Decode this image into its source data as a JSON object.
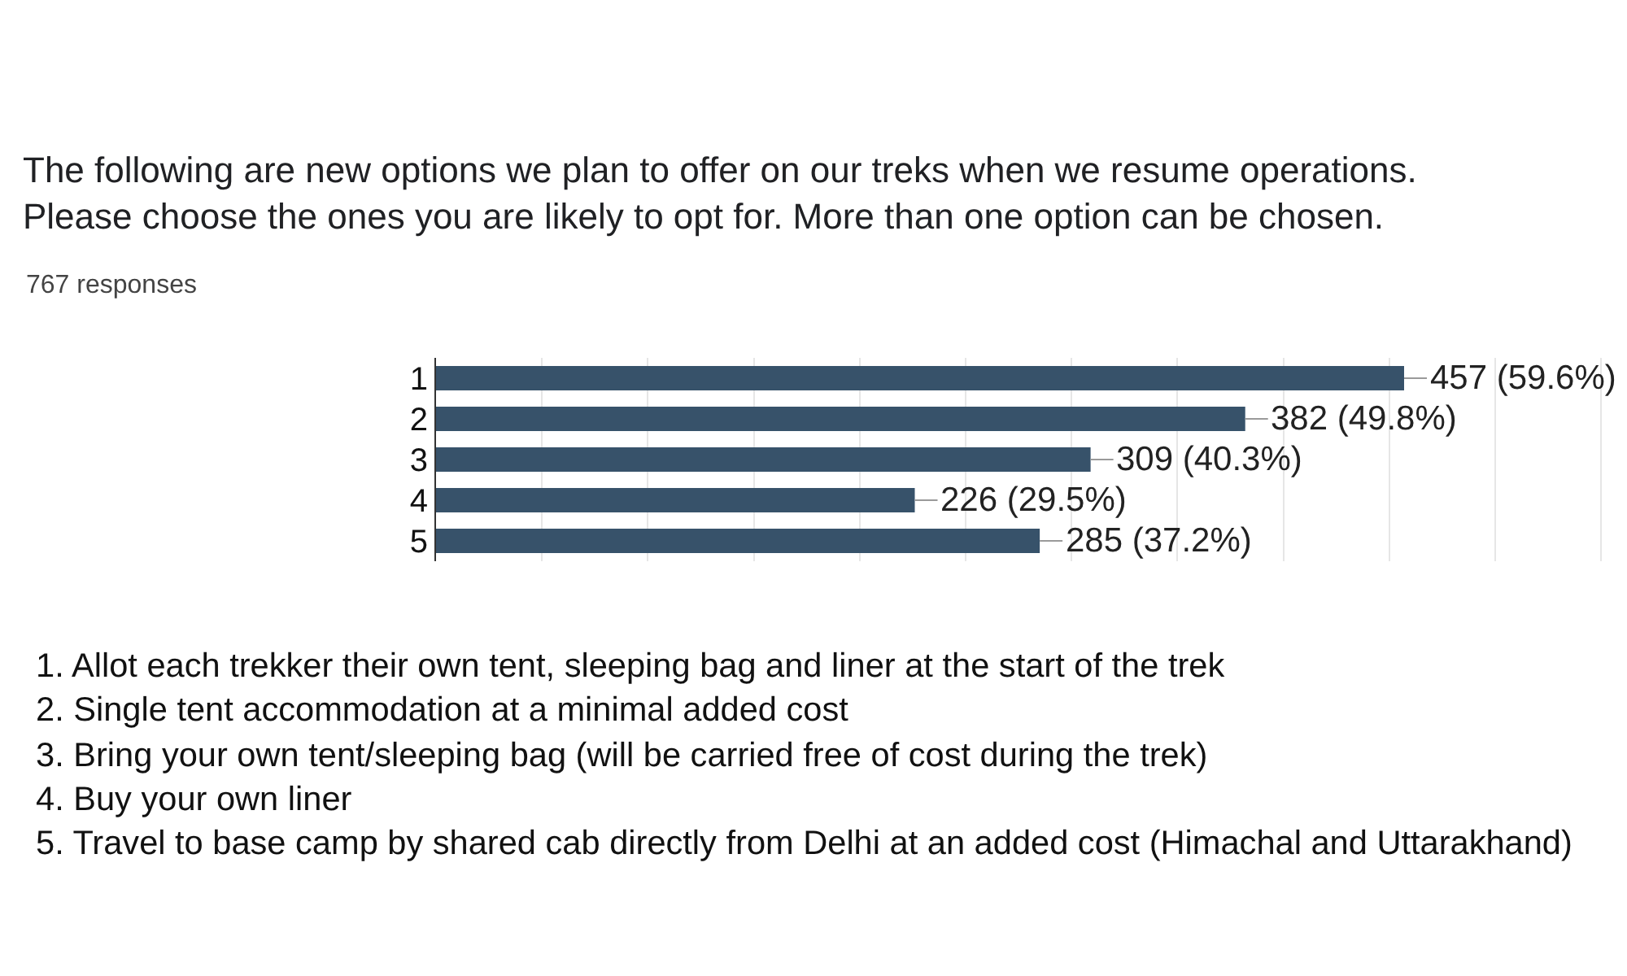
{
  "chart_data": {
    "type": "bar",
    "orientation": "horizontal",
    "title": "The following are new options we plan to offer on our treks when we resume operations.\nPlease choose the ones you are likely to opt for. More than one option can be chosen.",
    "subtitle": "767 responses",
    "categories": [
      "1",
      "2",
      "3",
      "4",
      "5"
    ],
    "values": [
      457,
      382,
      309,
      226,
      285
    ],
    "value_labels": [
      "457 (59.6%)",
      "382 (49.8%)",
      "309 (40.3%)",
      "226 (29.5%)",
      "285 (37.2%)"
    ],
    "color": "#37526a",
    "grid": "x",
    "tick_labels": "y",
    "annotations": [
      "1. Allot each trekker their own tent, sleeping bag and liner at the start of the trek",
      "2. Single tent accommodation at a minimal added cost",
      "3. Bring your own tent/sleeping bag (will be carried free of cost during the trek)",
      "4. Buy your own liner",
      "5. Travel to base camp by shared cab directly from Delhi at an added cost (Himachal and Uttarakhand)"
    ]
  }
}
